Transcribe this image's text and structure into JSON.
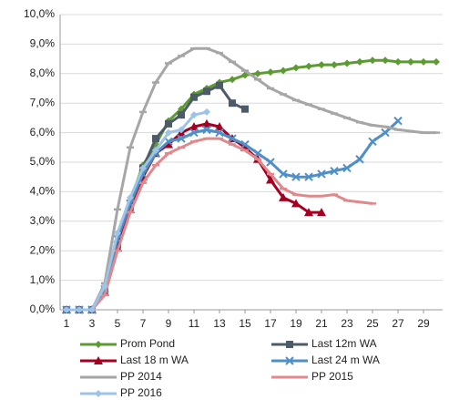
{
  "chart_data": {
    "type": "line",
    "x": [
      1,
      2,
      3,
      4,
      5,
      6,
      7,
      8,
      9,
      10,
      11,
      12,
      13,
      14,
      15,
      16,
      17,
      18,
      19,
      20,
      21,
      22,
      23,
      24,
      25,
      26,
      27,
      28,
      29,
      30
    ],
    "xlim": [
      0.5,
      30.5
    ],
    "xticks": [
      1,
      3,
      5,
      7,
      9,
      11,
      13,
      15,
      17,
      19,
      21,
      23,
      25,
      27,
      29
    ],
    "ylim": [
      0,
      10
    ],
    "yticks": [
      {
        "value": 0,
        "label": "0,0%"
      },
      {
        "value": 1,
        "label": "1,0%"
      },
      {
        "value": 2,
        "label": "2,0%"
      },
      {
        "value": 3,
        "label": "3,0%"
      },
      {
        "value": 4,
        "label": "4,0%"
      },
      {
        "value": 5,
        "label": "5,0%"
      },
      {
        "value": 6,
        "label": "6,0%"
      },
      {
        "value": 7,
        "label": "7,0%"
      },
      {
        "value": 8,
        "label": "8,0%"
      },
      {
        "value": 9,
        "label": "9,0%"
      },
      {
        "value": 10,
        "label": "10,0%"
      }
    ],
    "grid": true,
    "legend": "bottom",
    "series": [
      {
        "name": "Prom Pond",
        "color": "#5b9b32",
        "marker": "diamond",
        "values": [
          0,
          0,
          0,
          0.8,
          2.3,
          3.7,
          4.9,
          5.6,
          6.4,
          6.8,
          7.3,
          7.5,
          7.7,
          7.8,
          7.95,
          8.0,
          8.05,
          8.1,
          8.2,
          8.25,
          8.3,
          8.3,
          8.35,
          8.4,
          8.45,
          8.45,
          8.4,
          8.4,
          8.4,
          8.4
        ]
      },
      {
        "name": "Last 12m WA",
        "color": "#4d5b69",
        "marker": "square",
        "values": [
          0,
          0,
          0,
          0.7,
          2.2,
          3.5,
          4.8,
          5.8,
          6.3,
          6.6,
          7.2,
          7.4,
          7.6,
          7.0,
          6.8,
          null,
          null,
          null,
          null,
          null,
          null,
          null,
          null,
          null,
          null,
          null,
          null,
          null,
          null,
          null
        ]
      },
      {
        "name": "Last 18 m WA",
        "color": "#a50021",
        "marker": "triangle",
        "values": [
          0,
          0,
          0,
          0.6,
          2.1,
          3.4,
          4.5,
          5.3,
          5.6,
          6.0,
          6.2,
          6.3,
          6.2,
          5.8,
          5.5,
          5.1,
          4.4,
          3.8,
          3.6,
          3.3,
          3.3,
          null,
          null,
          null,
          null,
          null,
          null,
          null,
          null,
          null
        ]
      },
      {
        "name": "Last 24 m WA",
        "color": "#4f8fc8",
        "marker": "x",
        "values": [
          0,
          0,
          0,
          0.7,
          2.4,
          3.6,
          4.6,
          5.3,
          5.7,
          5.8,
          6.0,
          6.1,
          6.0,
          5.8,
          5.6,
          5.3,
          5.0,
          4.6,
          4.5,
          4.5,
          4.6,
          4.7,
          4.8,
          5.1,
          5.7,
          6.0,
          6.4,
          null,
          null,
          null
        ]
      },
      {
        "name": "PP 2014",
        "color": "#a6a6a6",
        "marker": "dash",
        "values": [
          0,
          0,
          0,
          0.9,
          3.4,
          5.5,
          6.7,
          7.7,
          8.35,
          8.6,
          8.85,
          8.85,
          8.7,
          8.4,
          8.1,
          7.8,
          7.5,
          7.3,
          7.1,
          6.95,
          6.8,
          6.65,
          6.5,
          6.35,
          6.25,
          6.2,
          6.1,
          6.05,
          6.0,
          6.0
        ]
      },
      {
        "name": "PP 2015",
        "color": "#e0898c",
        "marker": "dash",
        "values": [
          0,
          0,
          0,
          0.5,
          2.0,
          3.3,
          4.3,
          4.9,
          5.3,
          5.5,
          5.7,
          5.8,
          5.8,
          5.6,
          5.4,
          5.1,
          4.6,
          4.1,
          3.9,
          3.85,
          3.85,
          3.9,
          3.7,
          3.65,
          3.6,
          null,
          null,
          null,
          null,
          null
        ]
      },
      {
        "name": "PP 2016",
        "color": "#9dc3e6",
        "marker": "diamond",
        "values": [
          0,
          0,
          0,
          0.8,
          2.6,
          3.8,
          4.8,
          5.4,
          6.0,
          6.1,
          6.6,
          6.7,
          null,
          null,
          null,
          null,
          null,
          null,
          null,
          null,
          null,
          null,
          null,
          null,
          null,
          null,
          null,
          null,
          null,
          null
        ]
      }
    ]
  }
}
